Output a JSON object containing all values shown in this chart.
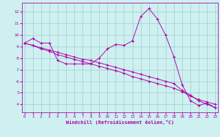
{
  "xlabel": "Windchill (Refroidissement éolien,°C)",
  "x_values": [
    0,
    1,
    2,
    3,
    4,
    5,
    6,
    7,
    8,
    9,
    10,
    11,
    12,
    13,
    14,
    15,
    16,
    17,
    18,
    19,
    20,
    21,
    22,
    23
  ],
  "line_main": [
    9.3,
    9.7,
    9.3,
    9.3,
    7.8,
    7.5,
    7.5,
    7.5,
    7.5,
    8.0,
    8.8,
    9.2,
    9.1,
    9.5,
    11.6,
    12.3,
    11.4,
    10.0,
    8.1,
    5.7,
    4.3,
    3.9,
    4.1,
    3.7
  ],
  "line_diag1": [
    9.3,
    9.1,
    8.9,
    8.7,
    8.5,
    8.3,
    8.1,
    7.9,
    7.8,
    7.6,
    7.4,
    7.2,
    7.0,
    6.8,
    6.6,
    6.4,
    6.2,
    6.0,
    5.8,
    5.2,
    4.8,
    4.3,
    4.0,
    3.7
  ],
  "line_diag2": [
    9.3,
    9.1,
    8.8,
    8.6,
    8.3,
    8.1,
    7.9,
    7.7,
    7.5,
    7.3,
    7.1,
    6.9,
    6.7,
    6.4,
    6.2,
    6.0,
    5.8,
    5.6,
    5.4,
    5.1,
    4.7,
    4.4,
    4.2,
    4.0
  ],
  "bg_color": "#cff0f0",
  "line_color": "#aa00aa",
  "grid_color": "#99cccc",
  "ylim_min": 3.3,
  "ylim_max": 12.8,
  "yticks": [
    4,
    5,
    6,
    7,
    8,
    9,
    10,
    11,
    12
  ],
  "xlim_min": -0.3,
  "xlim_max": 23.3,
  "xticks": [
    0,
    1,
    2,
    3,
    4,
    5,
    6,
    7,
    8,
    9,
    10,
    11,
    12,
    13,
    14,
    15,
    16,
    17,
    18,
    19,
    20,
    21,
    22,
    23
  ]
}
